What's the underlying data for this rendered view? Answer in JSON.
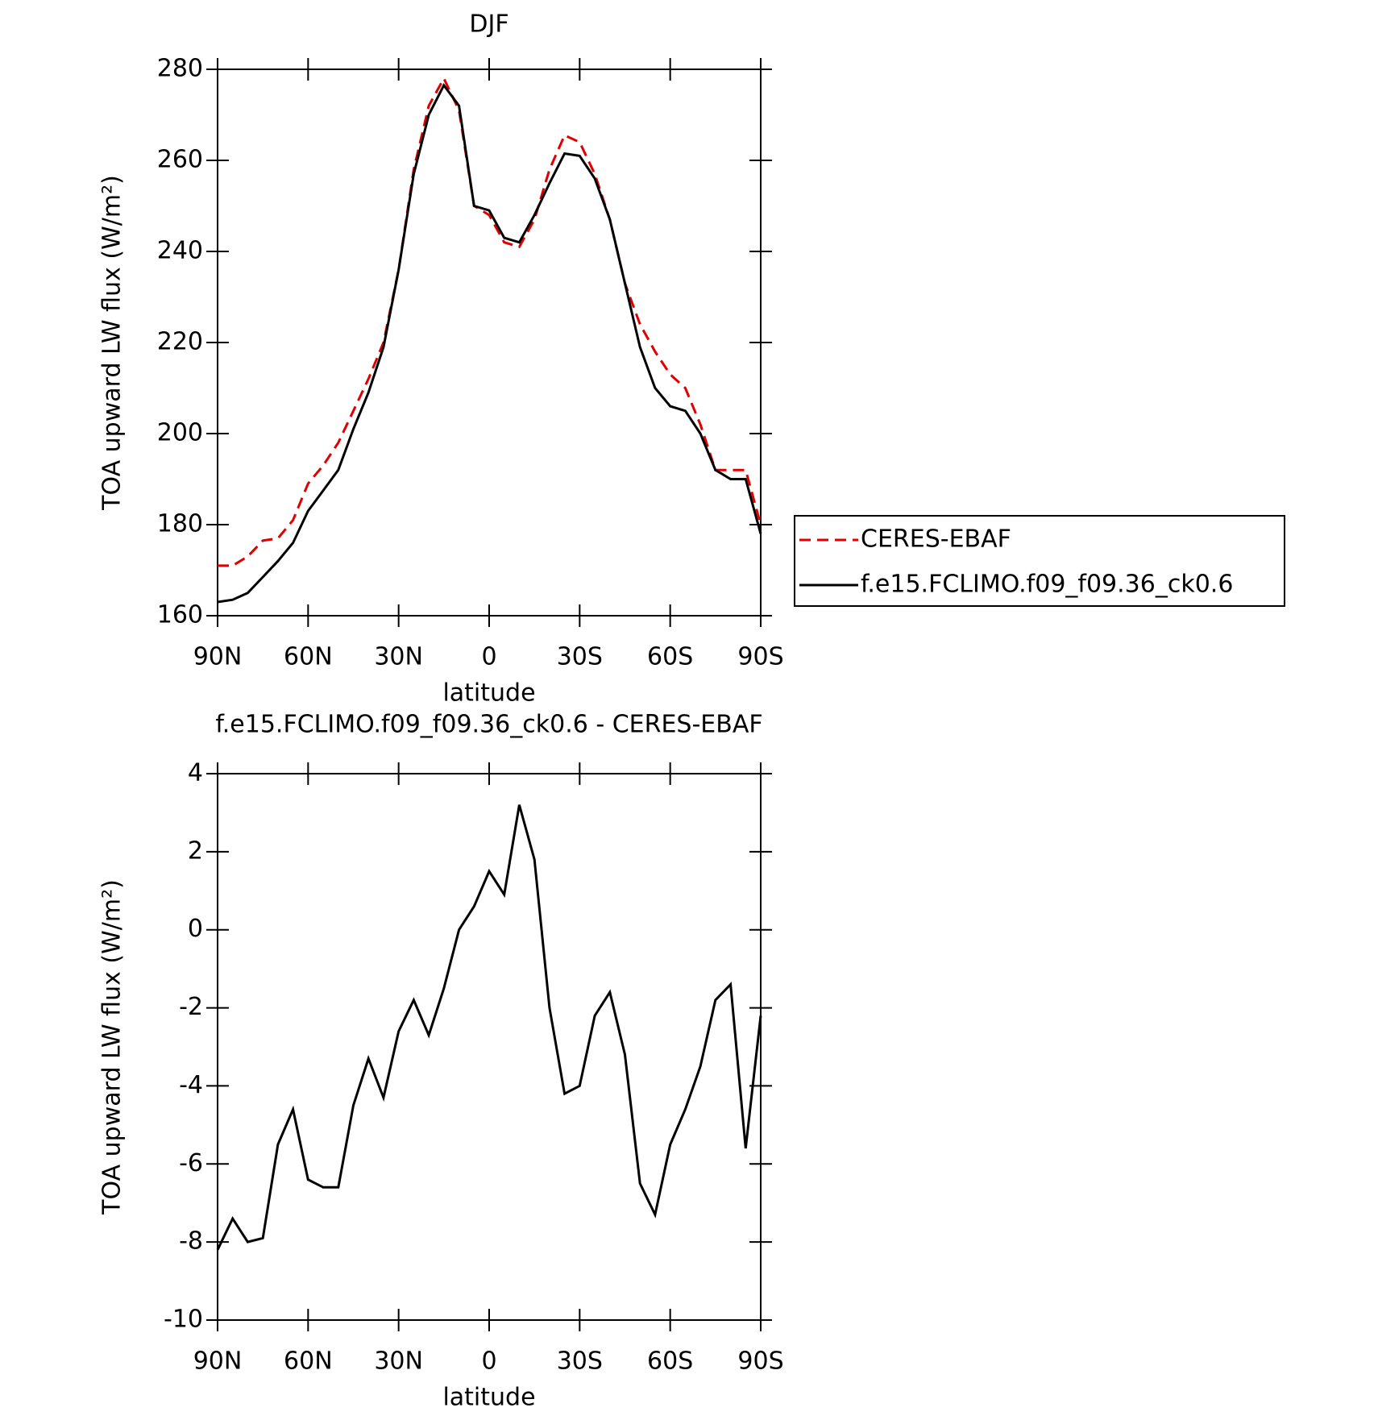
{
  "chart_data": [
    {
      "type": "line",
      "title": "DJF",
      "x_label": "latitude",
      "y_label": "TOA upward LW flux (W/m²)",
      "x": [
        90,
        85,
        80,
        75,
        70,
        65,
        60,
        55,
        50,
        45,
        40,
        35,
        30,
        25,
        20,
        15,
        10,
        5,
        0,
        -5,
        -10,
        -15,
        -20,
        -25,
        -30,
        -35,
        -40,
        -45,
        -50,
        -55,
        -60,
        -65,
        -70,
        -75,
        -80,
        -85,
        -90
      ],
      "series": [
        {
          "name": "CERES-EBAF",
          "color": "#e00000",
          "linestyle": "dashed",
          "values": [
            171,
            171,
            173,
            176.5,
            177,
            181,
            189,
            193,
            198,
            205,
            212,
            220,
            236,
            258,
            272,
            278,
            271,
            250,
            248,
            242,
            241,
            247,
            258,
            265.5,
            264,
            257,
            247,
            233,
            224,
            218,
            213,
            210,
            202,
            192,
            192,
            192,
            180
          ]
        },
        {
          "name": "f.e15.FCLIMO.f09_f09.36_ck0.6",
          "color": "#000000",
          "linestyle": "solid",
          "values": [
            163,
            163.5,
            165,
            168.5,
            172,
            176,
            183,
            187.5,
            192,
            201,
            209,
            219,
            236,
            257,
            270,
            276.5,
            272,
            250,
            249,
            243,
            242,
            248,
            255,
            261.5,
            261,
            256,
            247,
            233,
            219,
            210,
            206,
            205,
            200,
            192,
            190,
            190,
            178
          ]
        }
      ],
      "xlim": [
        90,
        -90
      ],
      "xticks": [
        {
          "value": 90,
          "label": "90N"
        },
        {
          "value": 60,
          "label": "60N"
        },
        {
          "value": 30,
          "label": "30N"
        },
        0,
        {
          "value": -30,
          "label": "30S"
        },
        {
          "value": -60,
          "label": "60S"
        },
        {
          "value": -90,
          "label": "90S"
        }
      ],
      "ylim": [
        160,
        280
      ],
      "yticks": [
        160,
        180,
        200,
        220,
        240,
        260,
        280
      ],
      "legend": "right"
    },
    {
      "type": "line",
      "title": "f.e15.FCLIMO.f09_f09.36_ck0.6 - CERES-EBAF",
      "x_label": "latitude",
      "y_label": "TOA upward LW flux (W/m²)",
      "x": [
        90,
        85,
        80,
        75,
        70,
        65,
        60,
        55,
        50,
        45,
        40,
        35,
        30,
        25,
        20,
        15,
        10,
        5,
        0,
        -5,
        -10,
        -15,
        -20,
        -25,
        -30,
        -35,
        -40,
        -45,
        -50,
        -55,
        -60,
        -65,
        -70,
        -75,
        -80,
        -85,
        -90
      ],
      "series": [
        {
          "color": "#000000",
          "linestyle": "solid",
          "values": [
            -8.2,
            -7.4,
            -8.0,
            -7.9,
            -5.5,
            -4.6,
            -6.4,
            -6.6,
            -6.6,
            -4.5,
            -3.3,
            -4.3,
            -2.6,
            -1.8,
            -2.7,
            -1.5,
            0,
            0.6,
            1.5,
            0.9,
            3.2,
            1.8,
            -2.0,
            -4.2,
            -4.0,
            -2.2,
            -1.6,
            -3.2,
            -6.5,
            -7.3,
            -5.5,
            -4.6,
            -3.5,
            -1.8,
            -1.4,
            -5.6,
            -2.2
          ]
        }
      ],
      "xlim": [
        90,
        -90
      ],
      "xticks": [
        {
          "value": 90,
          "label": "90N"
        },
        {
          "value": 60,
          "label": "60N"
        },
        {
          "value": 30,
          "label": "30N"
        },
        0,
        {
          "value": -30,
          "label": "30S"
        },
        {
          "value": -60,
          "label": "60S"
        },
        {
          "value": -90,
          "label": "90S"
        }
      ],
      "ylim": [
        -10,
        4
      ],
      "yticks": [
        -10,
        -8,
        -6,
        -4,
        -2,
        0,
        2,
        4
      ]
    }
  ]
}
